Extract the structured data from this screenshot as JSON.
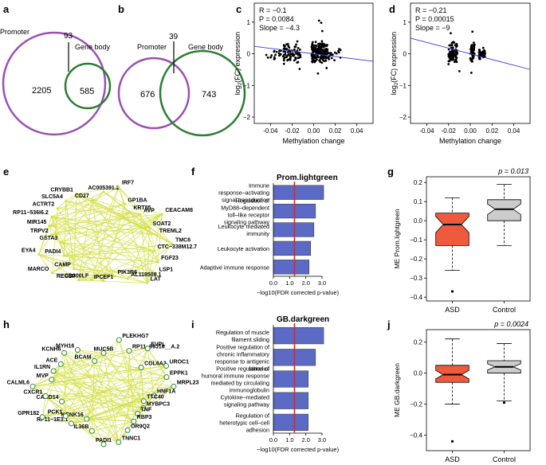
{
  "panels": {
    "a": "a",
    "b": "b",
    "c": "c",
    "d": "d",
    "e": "e",
    "f": "f",
    "g": "g",
    "h": "h",
    "i": "i",
    "j": "j"
  },
  "venn_a": {
    "left_label": "Promoter",
    "right_label": "Gene body",
    "left_only": "2205",
    "overlap": "93",
    "right_only": "585",
    "left_color": "#9b4fb5",
    "right_color": "#2e7d32"
  },
  "venn_b": {
    "left_label": "Promoter",
    "right_label": "Gene body",
    "left_only": "676",
    "overlap": "39",
    "right_only": "743",
    "left_color": "#9b4fb5",
    "right_color": "#2e7d32"
  },
  "chart_data": [
    {
      "panel": "c",
      "type": "scatter",
      "xlabel": "Methylation change",
      "ylabel": "log2(FC) expression",
      "xlim": [
        -0.055,
        0.055
      ],
      "ylim": [
        -2.2,
        1.6
      ],
      "xticks": [
        "-0.04",
        "-0.02",
        "0.00",
        "0.02",
        "0.04"
      ],
      "yticks": [
        "-2",
        "-1",
        "0",
        "1"
      ],
      "stats": [
        "R = −0.1",
        "P = 0.0084",
        "Slope = −4.3"
      ],
      "fit_line": [
        [
          -0.055,
          0.2365
        ],
        [
          0.055,
          -0.2365
        ]
      ],
      "point_clusters": [
        {
          "x_range": [
            -0.028,
            -0.012
          ],
          "y_range": [
            -0.45,
            0.52
          ],
          "count": 70
        },
        {
          "x_range": [
            -0.002,
            0.013
          ],
          "y_range": [
            -0.35,
            0.45
          ],
          "count": 170
        },
        {
          "x_range": [
            -0.045,
            -0.025
          ],
          "y_range": [
            -0.25,
            0.18
          ],
          "count": 20
        },
        {
          "x_range": [
            0.013,
            0.025
          ],
          "y_range": [
            -0.25,
            0.22
          ],
          "count": 20
        }
      ],
      "outliers": [
        [
          0.005,
          1.05
        ],
        [
          0.007,
          0.98
        ],
        [
          0.004,
          -0.62
        ],
        [
          -0.013,
          -0.48
        ],
        [
          0.008,
          0.72
        ],
        [
          0.012,
          -0.45
        ]
      ]
    },
    {
      "panel": "d",
      "type": "scatter",
      "xlabel": "Methylation change",
      "ylabel": "log2(FC) expression",
      "xlim": [
        -0.055,
        0.055
      ],
      "ylim": [
        -2.2,
        1.6
      ],
      "xticks": [
        "-0.04",
        "-0.02",
        "0.00",
        "0.02",
        "0.04"
      ],
      "yticks": [
        "-2",
        "-1",
        "0",
        "1"
      ],
      "stats": [
        "R = −0.21",
        "P = 0.00015",
        "Slope = −9"
      ],
      "fit_line": [
        [
          -0.055,
          0.495
        ],
        [
          0.055,
          -0.495
        ]
      ],
      "point_clusters": [
        {
          "x_range": [
            -0.02,
            -0.012
          ],
          "y_range": [
            -0.45,
            0.52
          ],
          "count": 90
        },
        {
          "x_range": [
            0.0,
            0.004
          ],
          "y_range": [
            -0.4,
            0.52
          ],
          "count": 60
        },
        {
          "x_range": [
            0.008,
            0.014
          ],
          "y_range": [
            -0.3,
            0.3
          ],
          "count": 40
        }
      ],
      "outliers": [
        [
          -0.018,
          0.65
        ],
        [
          0.002,
          0.7
        ],
        [
          -0.01,
          -0.55
        ],
        [
          0.001,
          -0.6
        ]
      ]
    },
    {
      "panel": "f",
      "type": "bar",
      "title": "Prom.lightgreen",
      "xlabel": "−log10(FDR corrected p-value)",
      "xticks": [
        "0.0",
        "1.0",
        "2.0",
        "3.0"
      ],
      "xlim": [
        0,
        3.0
      ],
      "threshold": 1.3,
      "bar_color": "#5b6ac4",
      "threshold_color": "#d62728",
      "categories": [
        "Immune response–activating signal transduction",
        "Regulation of MyD88–dependent toll–like receptor signaling pathway",
        "Leukocyte mediated immunity",
        "Leukocyte activation",
        "Adaptive immune response"
      ],
      "values": [
        3.1,
        2.6,
        2.5,
        2.3,
        2.2
      ]
    },
    {
      "panel": "g",
      "type": "box",
      "ylabel": "ME Prom.lightgreen",
      "pvalue": "p = 0.013",
      "categories": [
        "ASD",
        "Control"
      ],
      "yticks": [
        "-0.4",
        "-0.3",
        "-0.2",
        "-0.1",
        "0.0",
        "0.1",
        "0.2"
      ],
      "ylim": [
        -0.42,
        0.23
      ],
      "boxes": [
        {
          "name": "ASD",
          "color": "#f05a3c",
          "min": -0.26,
          "q1": -0.13,
          "median": -0.02,
          "q3": 0.04,
          "max": 0.12,
          "outliers": [
            -0.37
          ]
        },
        {
          "name": "Control",
          "color": "#cccccc",
          "min": -0.13,
          "q1": 0.0,
          "median": 0.06,
          "q3": 0.11,
          "max": 0.19,
          "outliers": []
        }
      ]
    },
    {
      "panel": "i",
      "type": "bar",
      "title": "GB.darkgreen",
      "xlabel": "−log10(FDR corrected p-value)",
      "xticks": [
        "0.0",
        "1.0",
        "2.0",
        "3.0"
      ],
      "xlim": [
        0,
        3.0
      ],
      "threshold": 1.3,
      "bar_color": "#5b6ac4",
      "threshold_color": "#d62728",
      "categories": [
        "Regulation of muscle filament sliding",
        "Positive regulation of chronic inflammatory response to antigenic stimulus",
        "Positive regulation of humoral immune response mediated by circulating immunoglobulin",
        "Cytokine–mediated signaling pathway",
        "Regulation of heterotypic cell–cell adhesion"
      ],
      "values": [
        3.1,
        2.6,
        2.15,
        2.15,
        2.15
      ]
    },
    {
      "panel": "j",
      "type": "box",
      "ylabel": "ME GB.darkgreen",
      "pvalue": "p = 0.0024",
      "categories": [
        "ASD",
        "Control"
      ],
      "yticks": [
        "-0.4",
        "-0.2",
        "0.0",
        "0.2"
      ],
      "ylim": [
        -0.5,
        0.28
      ],
      "boxes": [
        {
          "name": "ASD",
          "color": "#f05a3c",
          "min": -0.2,
          "q1": -0.06,
          "median": -0.01,
          "q3": 0.05,
          "max": 0.22,
          "outliers": [
            -0.44
          ]
        },
        {
          "name": "Control",
          "color": "#cccccc",
          "min": -0.18,
          "q1": 0.0,
          "median": 0.04,
          "q3": 0.08,
          "max": 0.19,
          "outliers": [
            -0.19
          ]
        }
      ]
    }
  ],
  "network_e": {
    "edge_color": "#d4e04a",
    "node_color": "#d4e04a",
    "genes": [
      "AC005391.2",
      "IRF7",
      "GP1BA",
      "KRT85",
      "AVP",
      "CEACAM8",
      "SOAT2",
      "TREML2",
      "TMC6",
      "CTC−338M12.7",
      "FGF23",
      "LSP1",
      "LAT",
      "AL118508.1",
      "PIK3R6",
      "IPCEF1",
      "CD300LF",
      "REG1P",
      "CAMP",
      "MARCO",
      "PADI4",
      "EYA4",
      "GSTA3",
      "TRPV2",
      "MIR145",
      "RP11−536I6.2",
      "ACTRT2",
      "SLC5A4",
      "CRYBB1",
      "CD27"
    ]
  },
  "network_h": {
    "edge_color": "#d4e04a",
    "node_color": "#2e8b3a",
    "genes": [
      "MUC5B",
      "PLEKHG7",
      "RP11−99J16__A.2",
      "EVPL",
      "COL6A2",
      "UROC1",
      "EPPK1",
      "MRPL23",
      "HNF1A",
      "TTC40",
      "MYBPC3",
      "TNF",
      "RBP3",
      "OR9Q2",
      "TNNC1",
      "PADI1",
      "IL36B",
      "KCNK16",
      "RP11−1E3.1",
      "PCK1",
      "GPR182",
      "CARD14",
      "CXCR1",
      "CALML6",
      "MVP",
      "IL1RN",
      "ACE",
      "KCNH6",
      "MYH16",
      "BCAM"
    ]
  }
}
